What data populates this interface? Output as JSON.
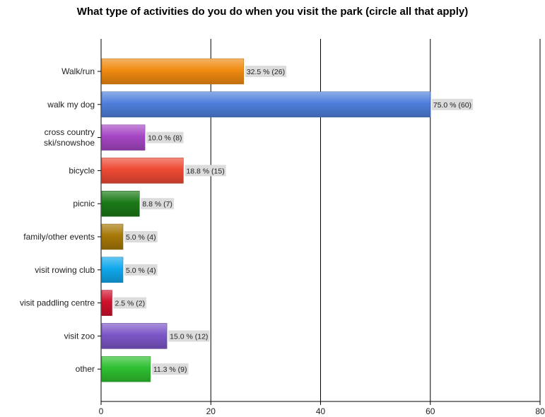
{
  "chart_data": {
    "type": "bar",
    "orientation": "horizontal",
    "title": "What type of activities do you do when you visit the park (circle all that apply)",
    "xlabel": "",
    "ylabel": "",
    "xlim": [
      0,
      80
    ],
    "ticks": [
      0,
      20,
      40,
      60,
      80
    ],
    "tick_labels": [
      "0",
      "20",
      "40",
      "60",
      "80"
    ],
    "grid": "vertical",
    "legend": "none",
    "categories": [
      "Walk/run",
      "walk my dog",
      "cross country\nski/snowshoe",
      "bicycle",
      "picnic",
      "family/other events",
      "visit rowing club",
      "visit paddling centre",
      "visit zoo",
      "other"
    ],
    "values": [
      26,
      60,
      8,
      15,
      7,
      4,
      4,
      2,
      12,
      9
    ],
    "data_labels": [
      "32.5 % (26)",
      "75.0 % (60)",
      "10.0 % (8)",
      "18.8 % (15)",
      "8.8 % (7)",
      "5.0 % (4)",
      "5.0 % (4)",
      "2.5 % (2)",
      "15.0 % (12)",
      "11.3 % (9)"
    ],
    "colors": [
      "#f08a10",
      "#4f7fdc",
      "#a646c4",
      "#ee4a34",
      "#1b7a18",
      "#a87808",
      "#10a8ec",
      "#d0102c",
      "#7c56c8",
      "#2ec030"
    ]
  }
}
